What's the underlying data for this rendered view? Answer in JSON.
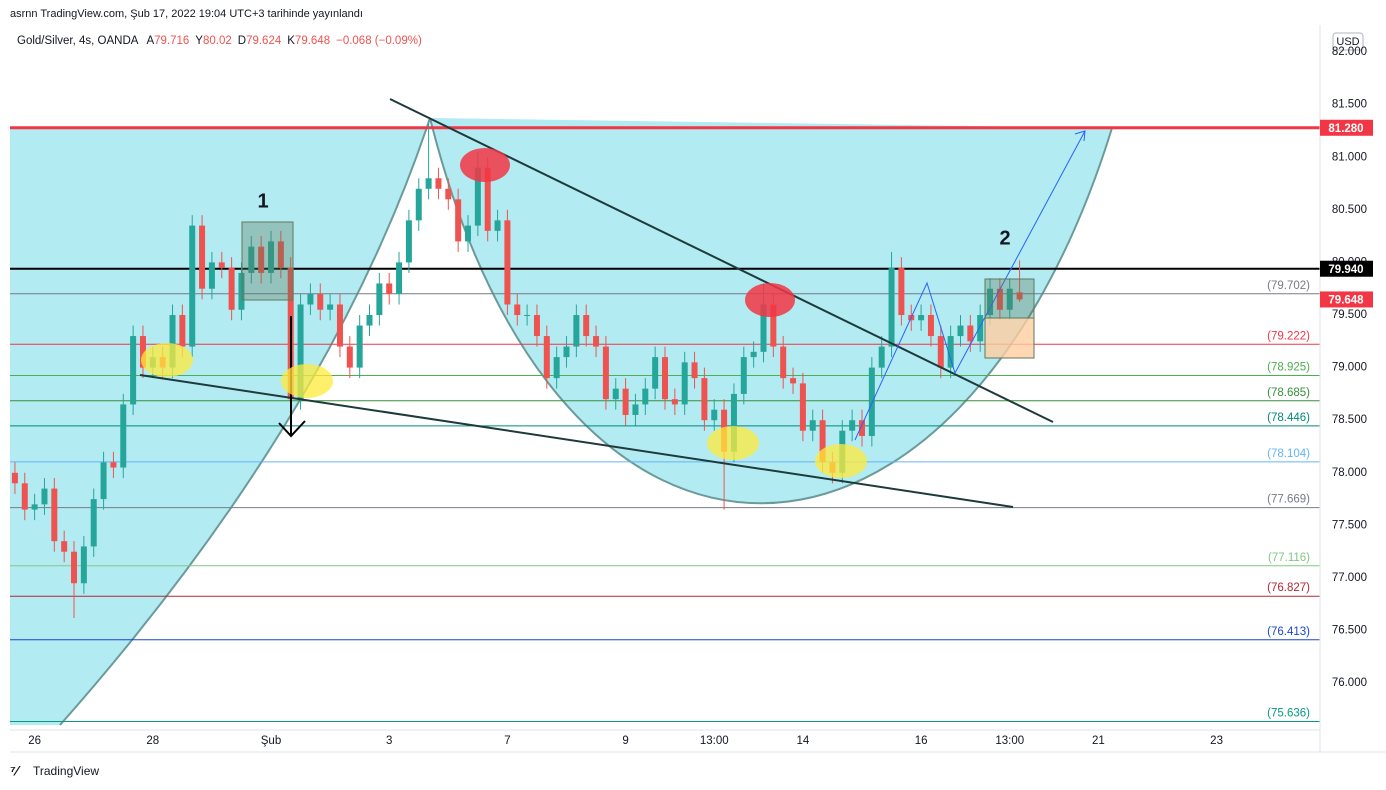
{
  "chart_data": {
    "type": "candlestick",
    "publish_note": "asrnn TradingView.com, Şub 17, 2022 19:04 UTC+3 tarihinde yayınlandı",
    "symbol": "Gold/Silver, 4s, OANDA",
    "ohlc_labels": [
      "A",
      "Y",
      "D",
      "K"
    ],
    "change": "−0.068 (−0.09%)",
    "currency": "USD",
    "footer": "TradingView",
    "annotations": [
      "1",
      "2"
    ],
    "up_color": "#26a69a",
    "down_color": "#ef5350",
    "grid": false,
    "xlim": [
      -0.5,
      132.5
    ],
    "ylim": [
      75.555,
      82.257
    ],
    "xticks": [
      {
        "value": 2,
        "label": "26"
      },
      {
        "value": 14,
        "label": "28"
      },
      {
        "value": 26,
        "label": "Şub"
      },
      {
        "value": 38,
        "label": "3"
      },
      {
        "value": 50,
        "label": "7"
      },
      {
        "value": 62,
        "label": "9"
      },
      {
        "value": 71,
        "label": "13:00"
      },
      {
        "value": 80,
        "label": "14"
      },
      {
        "value": 92,
        "label": "16"
      },
      {
        "value": 101,
        "label": "13:00"
      },
      {
        "value": 110,
        "label": "21"
      },
      {
        "value": 122,
        "label": "23"
      }
    ],
    "yticks": [
      {
        "value": 76,
        "label": "76.000"
      },
      {
        "value": 76.5,
        "label": "76.500"
      },
      {
        "value": 77,
        "label": "77.000"
      },
      {
        "value": 77.5,
        "label": "77.500"
      },
      {
        "value": 78,
        "label": "78.000"
      },
      {
        "value": 78.5,
        "label": "78.500"
      },
      {
        "value": 79,
        "label": "79.000"
      },
      {
        "value": 79.5,
        "label": "79.500"
      },
      {
        "value": 80,
        "label": "80.000"
      },
      {
        "value": 80.5,
        "label": "80.500"
      },
      {
        "value": 81,
        "label": "81.000"
      },
      {
        "value": 81.5,
        "label": "81.500"
      },
      {
        "value": 82,
        "label": "82.000"
      }
    ],
    "open": [
      78.0,
      77.9,
      77.65,
      77.7,
      77.85,
      77.35,
      77.25,
      76.95,
      77.3,
      77.75,
      78.1,
      78.05,
      78.65,
      79.3,
      79.0,
      79.1,
      79.0,
      79.5,
      79.2,
      80.35,
      79.75,
      80.0,
      79.95,
      79.55,
      79.9,
      80.15,
      79.9,
      80.2,
      79.95,
      78.7,
      79.6,
      79.7,
      79.55,
      79.6,
      79.2,
      79.0,
      79.4,
      79.5,
      79.8,
      79.7,
      80.0,
      80.4,
      80.7,
      80.8,
      80.7,
      80.6,
      80.2,
      80.35,
      80.9,
      80.3,
      80.4,
      79.6,
      79.5,
      79.5,
      79.3,
      78.9,
      79.1,
      79.2,
      79.5,
      79.3,
      79.2,
      78.7,
      78.8,
      78.55,
      78.65,
      78.8,
      79.1,
      78.7,
      78.65,
      79.05,
      78.9,
      78.5,
      78.6,
      78.2,
      78.75,
      79.1,
      79.15,
      79.6,
      79.2,
      78.9,
      78.85,
      78.4,
      78.5,
      78.1,
      78.0,
      78.4,
      78.5,
      78.35,
      79.0,
      79.2,
      79.95,
      79.5,
      79.45,
      79.5,
      79.3,
      79.0,
      79.3,
      79.4,
      79.25,
      79.5,
      79.75,
      79.55,
      79.716
    ],
    "high": [
      78.1,
      78.0,
      77.8,
      77.95,
      77.95,
      77.45,
      77.35,
      77.4,
      77.85,
      78.2,
      78.2,
      78.75,
      79.4,
      79.4,
      79.2,
      79.2,
      79.6,
      79.6,
      80.45,
      80.45,
      80.1,
      80.1,
      80.05,
      80.0,
      80.25,
      80.25,
      80.3,
      80.3,
      80.05,
      79.7,
      79.8,
      79.8,
      79.7,
      79.7,
      79.3,
      79.5,
      79.6,
      79.9,
      79.9,
      80.1,
      80.5,
      80.8,
      81.32,
      80.9,
      80.8,
      80.7,
      80.45,
      81.05,
      81.0,
      80.5,
      80.5,
      79.7,
      79.6,
      79.6,
      79.4,
      79.2,
      79.3,
      79.6,
      79.6,
      79.4,
      79.3,
      78.9,
      78.9,
      78.75,
      78.9,
      79.2,
      79.2,
      78.8,
      79.15,
      79.15,
      79.0,
      78.7,
      78.7,
      78.85,
      79.2,
      79.25,
      79.8,
      79.7,
      79.3,
      79.0,
      78.95,
      78.6,
      78.6,
      78.2,
      78.5,
      78.6,
      78.6,
      79.1,
      79.3,
      80.1,
      80.05,
      79.6,
      79.6,
      79.6,
      79.4,
      79.4,
      79.5,
      79.5,
      79.6,
      79.85,
      79.85,
      79.85,
      80.02
    ],
    "low": [
      77.8,
      77.55,
      77.55,
      77.6,
      77.25,
      77.15,
      76.62,
      76.85,
      77.2,
      77.65,
      77.95,
      77.95,
      78.55,
      78.9,
      78.9,
      78.9,
      78.9,
      79.1,
      79.1,
      79.65,
      79.65,
      79.85,
      79.45,
      79.45,
      79.8,
      79.8,
      79.8,
      79.85,
      78.6,
      78.6,
      79.5,
      79.45,
      79.45,
      79.1,
      78.9,
      78.9,
      79.3,
      79.4,
      79.6,
      79.6,
      79.9,
      80.3,
      80.6,
      80.6,
      80.5,
      80.1,
      80.1,
      80.25,
      80.2,
      80.2,
      79.5,
      79.4,
      79.4,
      79.2,
      78.8,
      78.8,
      79.0,
      79.1,
      79.2,
      79.1,
      78.6,
      78.6,
      78.45,
      78.45,
      78.55,
      78.7,
      78.6,
      78.55,
      78.55,
      78.8,
      78.4,
      78.4,
      77.65,
      78.1,
      78.65,
      79.0,
      79.05,
      79.1,
      78.8,
      78.75,
      78.3,
      78.3,
      78.0,
      77.9,
      77.9,
      78.3,
      78.25,
      78.25,
      78.9,
      79.1,
      79.4,
      79.35,
      79.35,
      79.2,
      78.9,
      78.9,
      79.2,
      79.15,
      79.15,
      79.4,
      79.45,
      79.45,
      79.624
    ],
    "close": [
      77.9,
      77.65,
      77.7,
      77.85,
      77.35,
      77.25,
      76.95,
      77.3,
      77.75,
      78.1,
      78.05,
      78.65,
      79.3,
      79.0,
      79.1,
      79.0,
      79.5,
      79.2,
      80.35,
      79.75,
      80.0,
      79.95,
      79.55,
      79.9,
      80.15,
      79.9,
      80.2,
      79.95,
      78.7,
      79.6,
      79.7,
      79.55,
      79.6,
      79.2,
      79.0,
      79.4,
      79.5,
      79.8,
      79.7,
      80.0,
      80.4,
      80.7,
      80.8,
      80.7,
      80.6,
      80.2,
      80.35,
      80.9,
      80.3,
      80.4,
      79.6,
      79.5,
      79.5,
      79.3,
      78.9,
      79.1,
      79.2,
      79.5,
      79.3,
      79.2,
      78.7,
      78.8,
      78.55,
      78.65,
      78.8,
      79.1,
      78.7,
      78.65,
      79.05,
      78.9,
      78.5,
      78.6,
      78.2,
      78.75,
      79.1,
      79.15,
      79.6,
      79.2,
      78.9,
      78.85,
      78.4,
      78.5,
      78.1,
      78.0,
      78.4,
      78.5,
      78.35,
      79.0,
      79.2,
      79.95,
      79.5,
      79.45,
      79.5,
      79.3,
      79.0,
      79.3,
      79.4,
      79.25,
      79.5,
      79.75,
      79.55,
      79.75,
      79.648
    ],
    "last_price_color": "#f23645",
    "levels": [
      {
        "value": 81.28,
        "label": "81.280",
        "color": "#f23645",
        "width": 3,
        "tag": true
      },
      {
        "value": 79.94,
        "label": "79.940",
        "color": "#000000",
        "width": 2,
        "tag": true
      },
      {
        "value": 79.702,
        "label": "(79.702)",
        "color": "#787b86",
        "width": 1,
        "tag": false
      },
      {
        "value": 79.222,
        "label": "(79.222)",
        "color": "#f23645",
        "width": 1,
        "tag": false
      },
      {
        "value": 78.925,
        "label": "(78.925)",
        "color": "#4caf50",
        "width": 1,
        "tag": false
      },
      {
        "value": 78.685,
        "label": "(78.685)",
        "color": "#388e3c",
        "width": 1,
        "tag": false
      },
      {
        "value": 78.446,
        "label": "(78.446)",
        "color": "#00897b",
        "width": 1,
        "tag": false
      },
      {
        "value": 78.104,
        "label": "(78.104)",
        "color": "#64b5f6",
        "width": 1,
        "tag": false
      },
      {
        "value": 77.669,
        "label": "(77.669)",
        "color": "#787b86",
        "width": 1,
        "tag": false
      },
      {
        "value": 77.116,
        "label": "(77.116)",
        "color": "#81c784",
        "width": 1,
        "tag": false
      },
      {
        "value": 76.827,
        "label": "(76.827)",
        "color": "#b22833",
        "width": 1,
        "tag": false
      },
      {
        "value": 76.413,
        "label": "(76.413)",
        "color": "#1848cc",
        "width": 1,
        "tag": false
      },
      {
        "value": 75.636,
        "label": "(75.636)",
        "color": "#089981",
        "width": 1,
        "tag": false
      }
    ]
  }
}
